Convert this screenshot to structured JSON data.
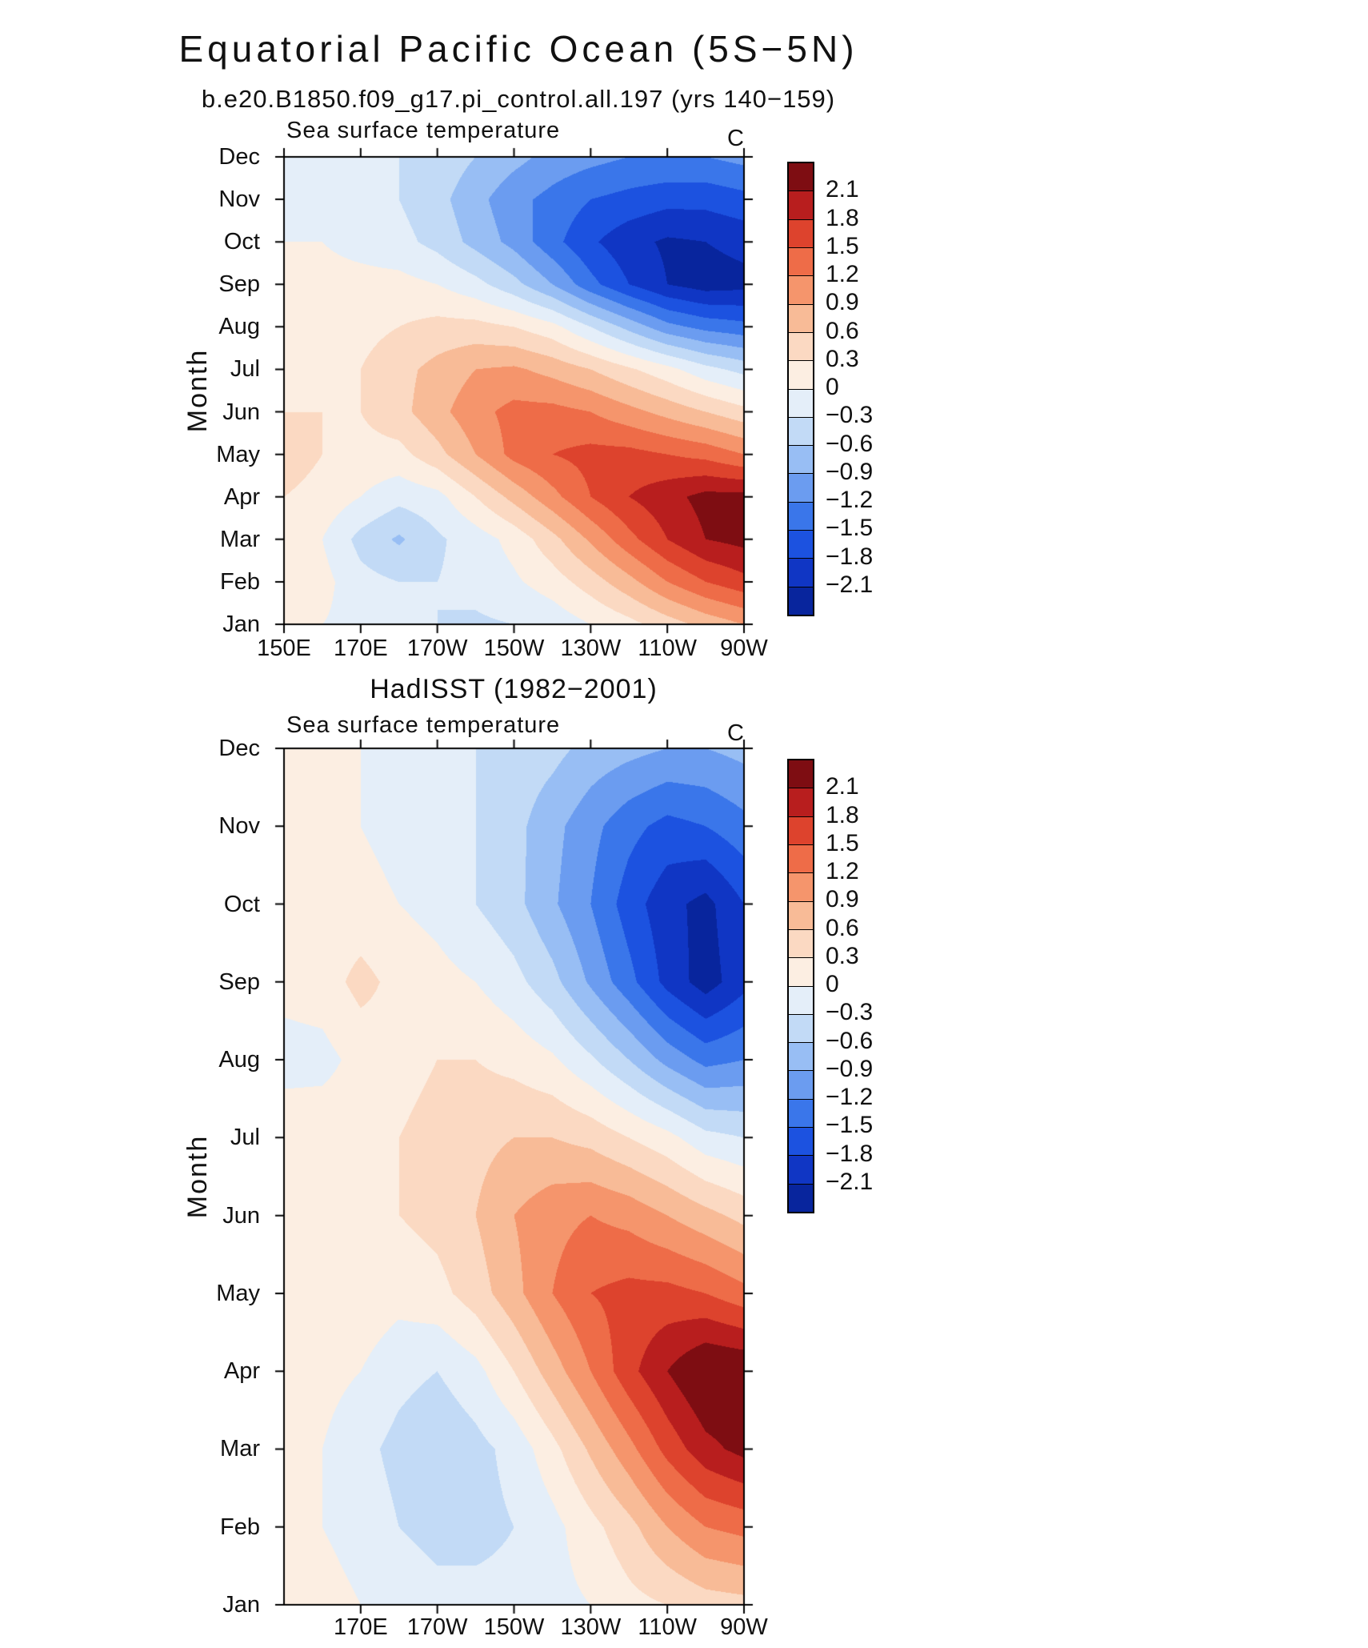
{
  "title": "Equatorial Pacific Ocean (5S−5N)",
  "colorbar": {
    "levels_ascending": [
      -2.1,
      -1.8,
      -1.5,
      -1.2,
      -0.9,
      -0.6,
      -0.3,
      0,
      0.3,
      0.6,
      0.9,
      1.2,
      1.5,
      1.8,
      2.1
    ],
    "level_labels_top_to_bottom": [
      "2.1",
      "1.8",
      "1.5",
      "1.2",
      "0.9",
      "0.6",
      "0.3",
      "0",
      "−0.3",
      "−0.6",
      "−0.9",
      "−1.2",
      "−1.5",
      "−1.8",
      "−2.1"
    ],
    "palette_low_to_high": [
      "#08259d",
      "#1036c4",
      "#1c52e0",
      "#3a76ea",
      "#6b9cf0",
      "#98bef4",
      "#c2daf6",
      "#e4eef9",
      "#fceee2",
      "#fbd9c2",
      "#f8bb97",
      "#f5956c",
      "#ee6c48",
      "#dd432d",
      "#b81e1e",
      "#7e0d12"
    ]
  },
  "chart_data": [
    {
      "type": "heatmap",
      "name": "model-hovmoller",
      "title": "b.e20.B1850.f09_g17.pi_control.all.197 (yrs 140−159)",
      "field_label": "Sea surface temperature",
      "units_label": "C",
      "ylabel": "Month",
      "months": [
        "Jan",
        "Feb",
        "Mar",
        "Apr",
        "May",
        "Jun",
        "Jul",
        "Aug",
        "Sep",
        "Oct",
        "Nov",
        "Dec"
      ],
      "lons_deg_east": [
        150,
        160,
        170,
        180,
        190,
        200,
        210,
        220,
        230,
        240,
        250,
        260,
        270
      ],
      "x_ticks": [
        {
          "lon": 150,
          "label": "150E"
        },
        {
          "lon": 170,
          "label": "170E"
        },
        {
          "lon": 190,
          "label": "170W"
        },
        {
          "lon": 210,
          "label": "150W"
        },
        {
          "lon": 230,
          "label": "130W"
        },
        {
          "lon": 250,
          "label": "110W"
        },
        {
          "lon": 270,
          "label": "90W"
        }
      ],
      "values_by_month": [
        [
          0.1,
          0.0,
          -0.1,
          -0.2,
          -0.3,
          -0.35,
          -0.3,
          -0.2,
          0.0,
          0.2,
          0.45,
          0.7,
          0.9
        ],
        [
          0.2,
          0.1,
          -0.2,
          -0.3,
          -0.3,
          -0.2,
          -0.05,
          0.15,
          0.45,
          0.8,
          1.2,
          1.5,
          1.7
        ],
        [
          0.2,
          0.0,
          -0.4,
          -0.65,
          -0.35,
          -0.15,
          0.1,
          0.5,
          0.95,
          1.4,
          1.8,
          2.1,
          2.2
        ],
        [
          0.3,
          0.2,
          0.0,
          -0.2,
          -0.1,
          0.3,
          0.7,
          1.1,
          1.5,
          1.8,
          2.0,
          2.2,
          2.2
        ],
        [
          0.45,
          0.3,
          0.2,
          0.2,
          0.5,
          0.9,
          1.3,
          1.5,
          1.6,
          1.6,
          1.5,
          1.4,
          1.2
        ],
        [
          0.3,
          0.3,
          0.3,
          0.5,
          0.8,
          1.1,
          1.3,
          1.3,
          1.2,
          1.0,
          0.8,
          0.6,
          0.4
        ],
        [
          0.2,
          0.2,
          0.3,
          0.5,
          0.7,
          0.9,
          0.95,
          0.8,
          0.6,
          0.35,
          0.1,
          -0.2,
          -0.4
        ],
        [
          0.1,
          0.2,
          0.2,
          0.3,
          0.4,
          0.4,
          0.3,
          0.1,
          -0.3,
          -0.7,
          -1.1,
          -1.3,
          -1.4
        ],
        [
          0.1,
          0.1,
          0.1,
          0.1,
          0.0,
          -0.2,
          -0.5,
          -0.9,
          -1.4,
          -1.8,
          -2.1,
          -2.25,
          -2.2
        ],
        [
          0.0,
          0.0,
          -0.1,
          -0.2,
          -0.4,
          -0.7,
          -1.0,
          -1.4,
          -1.75,
          -2.0,
          -2.15,
          -2.1,
          -2.0
        ],
        [
          0.0,
          -0.1,
          -0.2,
          -0.3,
          -0.5,
          -0.8,
          -1.1,
          -1.3,
          -1.5,
          -1.6,
          -1.7,
          -1.7,
          -1.6
        ],
        [
          0.0,
          -0.1,
          -0.2,
          -0.3,
          -0.4,
          -0.6,
          -0.8,
          -1.0,
          -1.1,
          -1.2,
          -1.2,
          -1.2,
          -1.1
        ]
      ]
    },
    {
      "type": "heatmap",
      "name": "hadisst-hovmoller",
      "title": "HadISST (1982−2001)",
      "field_label": "Sea surface temperature",
      "units_label": "C",
      "ylabel": "Month",
      "months": [
        "Jan",
        "Feb",
        "Mar",
        "Apr",
        "May",
        "Jun",
        "Jul",
        "Aug",
        "Sep",
        "Oct",
        "Nov",
        "Dec"
      ],
      "lons_deg_east": [
        150,
        160,
        170,
        180,
        190,
        200,
        210,
        220,
        230,
        240,
        250,
        260,
        270
      ],
      "x_ticks": [
        {
          "lon": 170,
          "label": "170E"
        },
        {
          "lon": 190,
          "label": "170W"
        },
        {
          "lon": 210,
          "label": "150W"
        },
        {
          "lon": 230,
          "label": "130W"
        },
        {
          "lon": 250,
          "label": "110W"
        },
        {
          "lon": 270,
          "label": "90W"
        }
      ],
      "values_by_month": [
        [
          0.1,
          0.1,
          0.0,
          -0.1,
          -0.2,
          -0.2,
          -0.2,
          -0.1,
          0.0,
          0.2,
          0.3,
          0.45,
          0.5
        ],
        [
          0.1,
          0.0,
          -0.1,
          -0.3,
          -0.4,
          -0.4,
          -0.3,
          -0.1,
          0.2,
          0.5,
          0.9,
          1.2,
          1.3
        ],
        [
          0.1,
          0.0,
          -0.2,
          -0.4,
          -0.55,
          -0.4,
          -0.2,
          0.2,
          0.65,
          1.1,
          1.6,
          2.0,
          2.2
        ],
        [
          0.1,
          0.1,
          0.0,
          -0.2,
          -0.3,
          -0.1,
          0.3,
          0.75,
          1.2,
          1.7,
          2.1,
          2.45,
          2.4
        ],
        [
          0.2,
          0.2,
          0.2,
          0.1,
          0.2,
          0.45,
          0.8,
          1.2,
          1.5,
          1.6,
          1.6,
          1.5,
          1.3
        ],
        [
          0.2,
          0.2,
          0.3,
          0.3,
          0.4,
          0.6,
          0.9,
          1.1,
          1.2,
          1.1,
          0.9,
          0.7,
          0.5
        ],
        [
          0.2,
          0.2,
          0.2,
          0.3,
          0.4,
          0.5,
          0.6,
          0.6,
          0.5,
          0.3,
          0.1,
          -0.2,
          -0.3
        ],
        [
          -0.12,
          -0.1,
          0.1,
          0.2,
          0.3,
          0.3,
          0.2,
          0.05,
          -0.25,
          -0.6,
          -1.0,
          -1.3,
          -1.2
        ],
        [
          0.1,
          0.15,
          0.4,
          0.2,
          0.1,
          0.0,
          -0.2,
          -0.5,
          -0.95,
          -1.4,
          -1.9,
          -2.25,
          -1.9
        ],
        [
          0.1,
          0.1,
          0.1,
          0.0,
          -0.1,
          -0.3,
          -0.5,
          -0.85,
          -1.2,
          -1.65,
          -2.0,
          -2.2,
          -1.8
        ],
        [
          0.1,
          0.1,
          0.0,
          -0.1,
          -0.2,
          -0.3,
          -0.5,
          -0.8,
          -1.1,
          -1.4,
          -1.6,
          -1.5,
          -1.3
        ],
        [
          0.1,
          0.1,
          0.0,
          -0.1,
          -0.2,
          -0.3,
          -0.4,
          -0.5,
          -0.7,
          -0.8,
          -0.9,
          -0.9,
          -0.8
        ]
      ]
    }
  ]
}
